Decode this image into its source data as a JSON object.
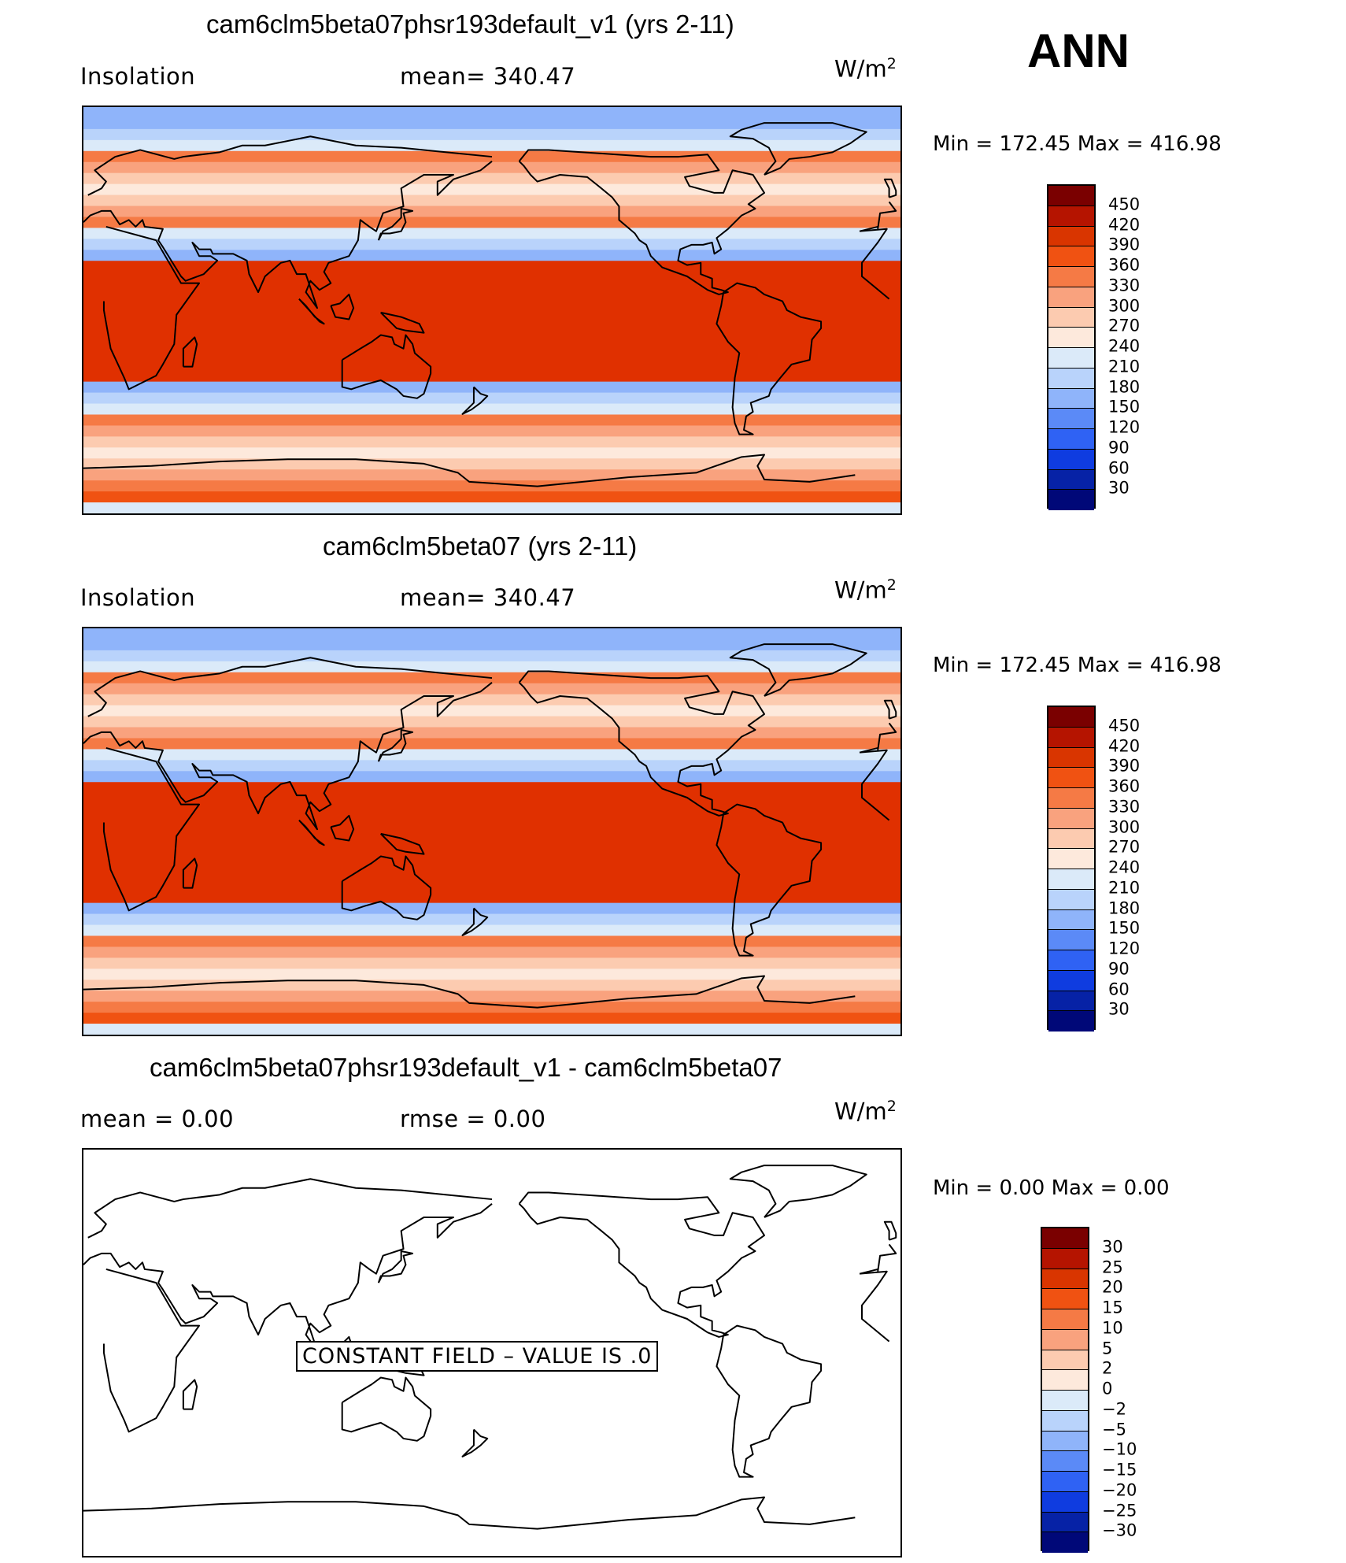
{
  "season": "ANN",
  "units_base": "W/m",
  "units_exp": "2",
  "panels": [
    {
      "title": "cam6clm5beta07phsr193default_v1 (yrs 2-11)",
      "left_label": "Insolation",
      "center_label": "mean=  340.47",
      "minmax": "Min  =  172.45  Max  =  416.98",
      "colorbar_labels": [
        "450",
        "420",
        "390",
        "360",
        "330",
        "300",
        "270",
        "240",
        "210",
        "180",
        "150",
        "120",
        "90",
        "60",
        "30"
      ],
      "field_rows": [
        8,
        8,
        7,
        6,
        4,
        3,
        2,
        1,
        2,
        3,
        4,
        6,
        7,
        8,
        9,
        9,
        9,
        9,
        9,
        9,
        9,
        9,
        9,
        9,
        9,
        8,
        7,
        6,
        4,
        3,
        2,
        1,
        2,
        3,
        4,
        5,
        6
      ]
    },
    {
      "title": "cam6clm5beta07 (yrs 2-11)",
      "left_label": "Insolation",
      "center_label": "mean=  340.47",
      "minmax": "Min  =  172.45  Max  =  416.98",
      "colorbar_labels": [
        "450",
        "420",
        "390",
        "360",
        "330",
        "300",
        "270",
        "240",
        "210",
        "180",
        "150",
        "120",
        "90",
        "60",
        "30"
      ],
      "field_rows": [
        8,
        8,
        7,
        6,
        4,
        3,
        2,
        1,
        2,
        3,
        4,
        6,
        7,
        8,
        9,
        9,
        9,
        9,
        9,
        9,
        9,
        9,
        9,
        9,
        9,
        8,
        7,
        6,
        4,
        3,
        2,
        1,
        2,
        3,
        4,
        5,
        6
      ]
    },
    {
      "title": "cam6clm5beta07phsr193default_v1 - cam6clm5beta07",
      "left_label": "mean  =      0.00",
      "center_label": "rmse  =      0.00",
      "minmax": "Min  =      0.00  Max  =      0.00",
      "colorbar_labels": [
        "30",
        "25",
        "20",
        "15",
        "10",
        "5",
        "2",
        "0",
        "−2",
        "−5",
        "−10",
        "−15",
        "−20",
        "−25",
        "−30"
      ],
      "constant_field_text": "CONSTANT  FIELD  –  VALUE  IS  .0"
    }
  ],
  "colors": {
    "colorbar_16": [
      "#7a0000",
      "#b51400",
      "#d93500",
      "#f05212",
      "#f57a45",
      "#f9a27e",
      "#fccbb0",
      "#fde9dc",
      "#dbeaf9",
      "#b9d3fb",
      "#8fb4fa",
      "#5b8af7",
      "#2f62f4",
      "#0f3ce0",
      "#0622a6",
      "#000878"
    ],
    "field_bands": [
      "#ffffff",
      "#fde9dc",
      "#fccbb0",
      "#f9a27e",
      "#f57a45",
      "#f05212",
      "#dbeaf9",
      "#b9d3fb",
      "#8fb4fa",
      "#e03000"
    ],
    "coast": "#000000"
  }
}
